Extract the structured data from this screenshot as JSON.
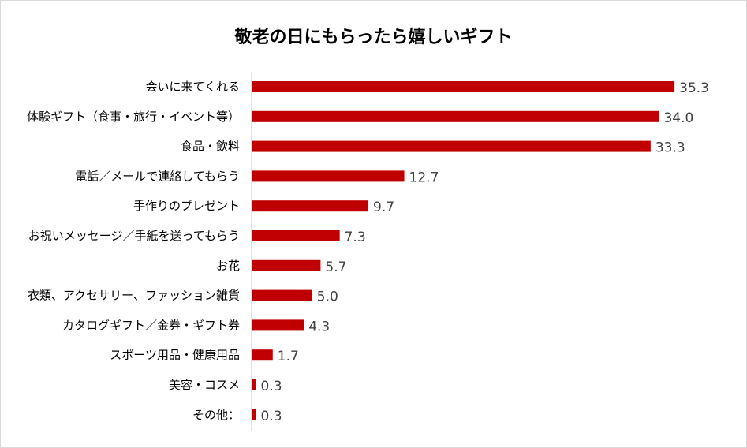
{
  "chart_data": {
    "type": "bar",
    "orientation": "horizontal",
    "title": "敬老の日にもらったら嬉しいギフト",
    "categories": [
      "会いに来てくれる",
      "体験ギフト（食事・旅行・イベント等）",
      "食品・飲料",
      "電話／メールで連絡してもらう",
      "手作りのプレゼント",
      "お祝いメッセージ／手紙を送ってもらう",
      "お花",
      "衣類、アクセサリー、ファッション雑貨",
      "カタログギフト／金券・ギフト券",
      "スポーツ用品・健康用品",
      "美容・コスメ",
      "その他："
    ],
    "values": [
      35.3,
      34.0,
      33.3,
      12.7,
      9.7,
      7.3,
      5.7,
      5.0,
      4.3,
      1.7,
      0.3,
      0.3
    ],
    "value_labels": [
      "35.3",
      "34.0",
      "33.3",
      "12.7",
      "9.7",
      "7.3",
      "5.7",
      "5.0",
      "4.3",
      "1.7",
      "0.3",
      "0.3"
    ],
    "bar_color": "#c00000",
    "grid": false,
    "legend": "none",
    "data_labels": true
  }
}
